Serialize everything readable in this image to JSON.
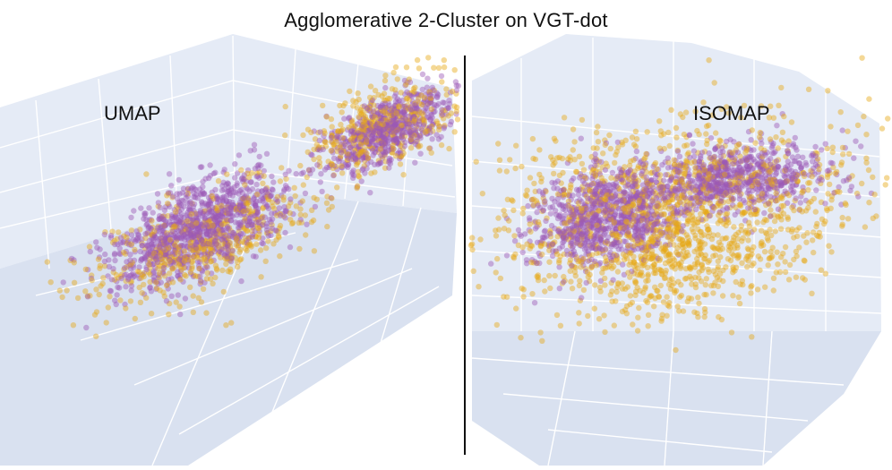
{
  "figure": {
    "title": "Agglomerative 2-Cluster on VGT-dot"
  },
  "colors": {
    "cluster_a": "#9b59b6",
    "cluster_b": "#e6a817",
    "pane": "#e5ebf6",
    "pane_dark": "#d9e1f0",
    "grid": "#ffffff"
  },
  "chart_data": [
    {
      "type": "scatter",
      "subtype": "3d-scatter",
      "title": "UMAP",
      "grid": true,
      "legend": "none",
      "series": [
        {
          "color": "#9b59b6",
          "clusters": [
            {
              "center": [
                0.3,
                0.6,
                0.15
              ],
              "spread": [
                0.11,
                0.08,
                0.1
              ],
              "count": 1000
            },
            {
              "center": [
                0.78,
                0.72,
                0.55
              ],
              "spread": [
                0.08,
                0.06,
                0.09
              ],
              "count": 650
            }
          ]
        },
        {
          "color": "#e6a817",
          "clusters": [
            {
              "center": [
                0.32,
                0.55,
                0.12
              ],
              "spread": [
                0.13,
                0.09,
                0.12
              ],
              "count": 520
            },
            {
              "center": [
                0.77,
                0.74,
                0.56
              ],
              "spread": [
                0.1,
                0.07,
                0.1
              ],
              "count": 420
            }
          ]
        }
      ]
    },
    {
      "type": "scatter",
      "subtype": "3d-scatter",
      "title": "ISOMAP",
      "grid": true,
      "legend": "none",
      "series": [
        {
          "color": "#9b59b6",
          "clusters": [
            {
              "center": [
                0.28,
                0.52,
                0.45
              ],
              "spread": [
                0.1,
                0.09,
                0.1
              ],
              "count": 850
            },
            {
              "center": [
                0.62,
                0.62,
                0.55
              ],
              "spread": [
                0.12,
                0.06,
                0.08
              ],
              "count": 700
            }
          ]
        },
        {
          "color": "#e6a817",
          "clusters": [
            {
              "center": [
                0.45,
                0.52,
                0.5
              ],
              "spread": [
                0.24,
                0.16,
                0.15
              ],
              "count": 1300
            },
            {
              "center": [
                0.5,
                0.3,
                0.45
              ],
              "spread": [
                0.12,
                0.1,
                0.12
              ],
              "count": 260
            }
          ]
        }
      ]
    }
  ]
}
